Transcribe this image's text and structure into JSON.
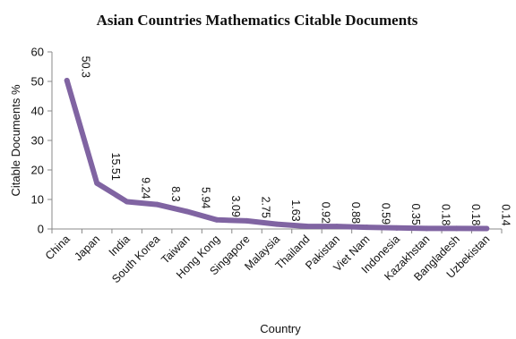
{
  "chart_data": {
    "type": "line",
    "title": "Asian Countries Mathematics Citable Documents",
    "xlabel": "Country",
    "ylabel": "Citable Documents %",
    "ylim": [
      0,
      60
    ],
    "yticks": [
      0,
      10,
      20,
      30,
      40,
      50,
      60
    ],
    "grid": false,
    "legend": "none",
    "color": "#8064A2",
    "categories": [
      "China",
      "Japan",
      "India",
      "South Korea",
      "Taiwan",
      "Hong Kong",
      "Singapore",
      "Malaysia",
      "Thailand",
      "Pakistan",
      "Viet Nam",
      "Indonesia",
      "Kazakhstan",
      "Bangladesh",
      "Uzbekistan"
    ],
    "series": [
      {
        "values": [
          50.3,
          15.51,
          9.24,
          8.3,
          5.94,
          3.09,
          2.75,
          1.63,
          0.92,
          0.88,
          0.59,
          0.35,
          0.18,
          0.18,
          0.14
        ]
      }
    ]
  }
}
